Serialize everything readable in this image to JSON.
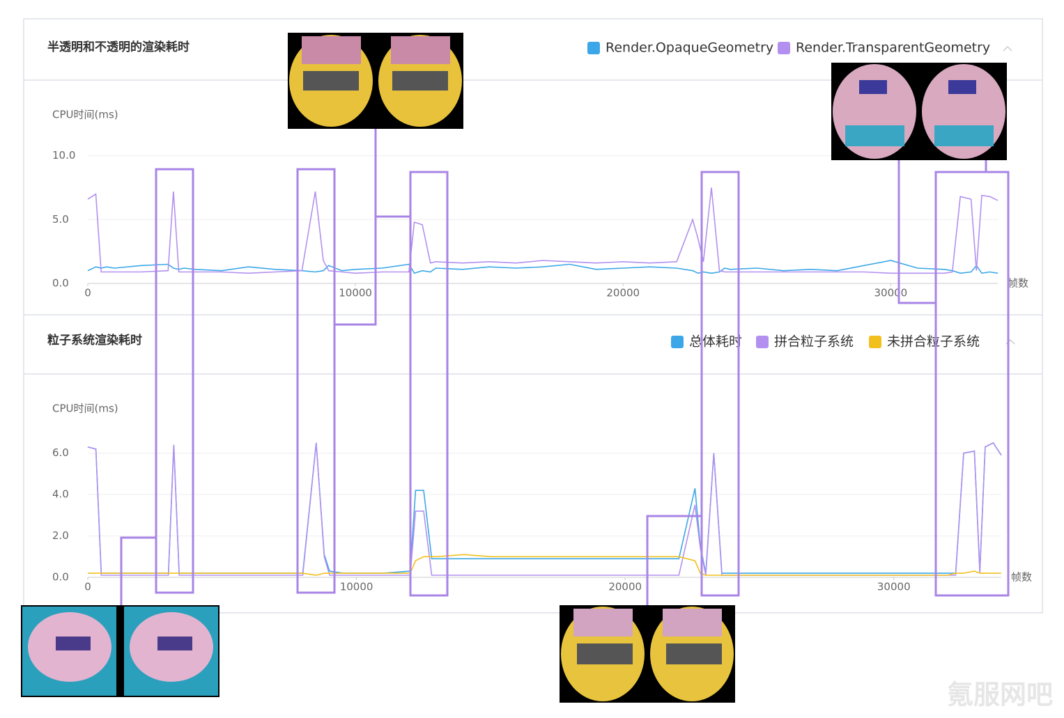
{
  "chart_data": [
    {
      "type": "line",
      "title": "半透明和不透明的渲染耗时",
      "ylabel": "CPU时间(ms)",
      "xlabel": "帧数",
      "x": [
        0,
        300,
        500,
        700,
        1000,
        2000,
        3000,
        3200,
        3400,
        3600,
        4000,
        5000,
        6000,
        7000,
        8000,
        8500,
        8800,
        9000,
        9500,
        10000,
        11000,
        12000,
        12200,
        12500,
        12800,
        13000,
        14000,
        15000,
        16000,
        17000,
        18000,
        19000,
        20000,
        21000,
        22000,
        22600,
        22800,
        23000,
        23300,
        23600,
        23800,
        24000,
        25000,
        26000,
        27000,
        28000,
        29000,
        30000,
        31000,
        32000,
        32300,
        32600,
        33000,
        33200,
        33400,
        33700,
        34000
      ],
      "series": [
        {
          "name": "Render.OpaqueGeometry",
          "color": "#3ba7e8",
          "values": [
            1.0,
            1.3,
            1.2,
            1.3,
            1.2,
            1.4,
            1.5,
            1.2,
            1.1,
            1.2,
            1.1,
            1.0,
            1.3,
            1.1,
            1.0,
            0.9,
            1.0,
            1.4,
            1.0,
            1.1,
            1.2,
            1.5,
            0.8,
            1.0,
            0.9,
            1.2,
            1.1,
            1.3,
            1.2,
            1.3,
            1.5,
            1.1,
            1.2,
            1.3,
            1.2,
            1.0,
            0.8,
            0.9,
            0.8,
            0.9,
            1.2,
            1.1,
            1.2,
            1.0,
            1.1,
            1.0,
            1.4,
            1.8,
            1.2,
            1.1,
            1.0,
            0.8,
            0.9,
            1.4,
            0.8,
            0.9,
            0.8
          ]
        },
        {
          "name": "Render.TransparentGeometry",
          "color": "#b390ef",
          "values": [
            6.6,
            7.0,
            0.9,
            0.9,
            0.9,
            0.9,
            1.0,
            7.2,
            0.9,
            0.9,
            0.9,
            0.9,
            0.8,
            0.9,
            1.0,
            7.2,
            1.8,
            1.0,
            0.9,
            0.8,
            0.9,
            0.9,
            4.8,
            4.6,
            1.6,
            1.7,
            1.6,
            1.7,
            1.6,
            1.8,
            1.7,
            1.6,
            1.7,
            1.6,
            1.7,
            5.0,
            3.5,
            1.7,
            7.5,
            1.0,
            0.9,
            0.9,
            0.9,
            0.9,
            0.9,
            0.9,
            0.9,
            0.8,
            0.8,
            0.8,
            0.9,
            6.8,
            6.6,
            1.0,
            6.9,
            6.8,
            6.5
          ]
        }
      ],
      "xlim": [
        0,
        34000
      ],
      "xticks": [
        0,
        10000,
        20000,
        30000
      ],
      "ylim": [
        0,
        12
      ],
      "yticks": [
        {
          "value": 0,
          "label": "0.0"
        },
        {
          "value": 5,
          "label": "5.0"
        },
        {
          "value": 10,
          "label": "10.0"
        }
      ],
      "grid": true,
      "legend": "top-right"
    },
    {
      "type": "line",
      "title": "粒子系统渲染耗时",
      "ylabel": "CPU时间(ms)",
      "xlabel": "帧数",
      "x": [
        0,
        300,
        500,
        700,
        1000,
        2000,
        3000,
        3200,
        3400,
        3600,
        4000,
        5000,
        6000,
        7000,
        8000,
        8500,
        8800,
        9000,
        9500,
        10000,
        11000,
        12000,
        12200,
        12500,
        12800,
        13000,
        14000,
        15000,
        16000,
        17000,
        18000,
        19000,
        20000,
        21000,
        22000,
        22600,
        22800,
        23000,
        23300,
        23600,
        23800,
        24000,
        25000,
        26000,
        27000,
        28000,
        29000,
        30000,
        31000,
        32000,
        32300,
        32600,
        33000,
        33200,
        33400,
        33700,
        34000
      ],
      "series": [
        {
          "name": "总体耗时",
          "color": "#3ba7e8",
          "values": [
            6.3,
            6.2,
            0.2,
            0.2,
            0.2,
            0.2,
            0.2,
            6.4,
            0.2,
            0.2,
            0.2,
            0.2,
            0.2,
            0.2,
            0.2,
            6.5,
            1.1,
            0.3,
            0.2,
            0.2,
            0.2,
            0.3,
            4.2,
            4.2,
            0.9,
            0.9,
            0.9,
            0.9,
            0.9,
            0.9,
            0.9,
            0.9,
            0.9,
            0.9,
            0.9,
            4.3,
            1.5,
            0.2,
            6.0,
            0.2,
            0.2,
            0.2,
            0.2,
            0.2,
            0.2,
            0.2,
            0.2,
            0.2,
            0.2,
            0.2,
            0.2,
            6.0,
            6.1,
            0.3,
            6.3,
            6.5,
            5.9
          ]
        },
        {
          "name": "拼合粒子系统",
          "color": "#b390ef",
          "values": [
            6.3,
            6.2,
            0.1,
            0.1,
            0.1,
            0.1,
            0.1,
            6.4,
            0.1,
            0.1,
            0.1,
            0.1,
            0.1,
            0.1,
            0.1,
            6.5,
            1.0,
            0.1,
            0.1,
            0.1,
            0.1,
            0.1,
            3.2,
            3.2,
            0.1,
            0.1,
            0.1,
            0.1,
            0.1,
            0.1,
            0.1,
            0.1,
            0.1,
            0.1,
            0.1,
            3.5,
            1.4,
            0.1,
            6.0,
            0.1,
            0.1,
            0.1,
            0.1,
            0.1,
            0.1,
            0.1,
            0.1,
            0.1,
            0.1,
            0.1,
            0.1,
            6.0,
            6.1,
            0.2,
            6.3,
            6.5,
            5.9
          ]
        },
        {
          "name": "未拼合粒子系统",
          "color": "#f2c01c",
          "values": [
            0.2,
            0.2,
            0.2,
            0.2,
            0.2,
            0.2,
            0.2,
            0.2,
            0.2,
            0.2,
            0.2,
            0.2,
            0.2,
            0.2,
            0.2,
            0.1,
            0.2,
            0.2,
            0.2,
            0.2,
            0.2,
            0.2,
            0.8,
            1.0,
            1.0,
            1.0,
            1.1,
            1.0,
            1.0,
            1.0,
            1.0,
            1.0,
            1.0,
            1.0,
            1.0,
            0.8,
            0.2,
            0.1,
            0.1,
            0.1,
            0.1,
            0.1,
            0.1,
            0.1,
            0.1,
            0.1,
            0.1,
            0.1,
            0.1,
            0.1,
            0.2,
            0.2,
            0.3,
            0.2,
            0.2,
            0.2,
            0.2
          ]
        }
      ],
      "xlim": [
        0,
        34000
      ],
      "xticks": [
        0,
        10000,
        20000,
        30000
      ],
      "ylim": [
        0,
        7
      ],
      "yticks": [
        {
          "value": 0,
          "label": "0.0"
        },
        {
          "value": 2,
          "label": "2.0"
        },
        {
          "value": 4,
          "label": "4.0"
        },
        {
          "value": 6,
          "label": "6.0"
        }
      ],
      "grid": true,
      "legend": "top-right"
    }
  ],
  "watermark": "氪服网吧"
}
